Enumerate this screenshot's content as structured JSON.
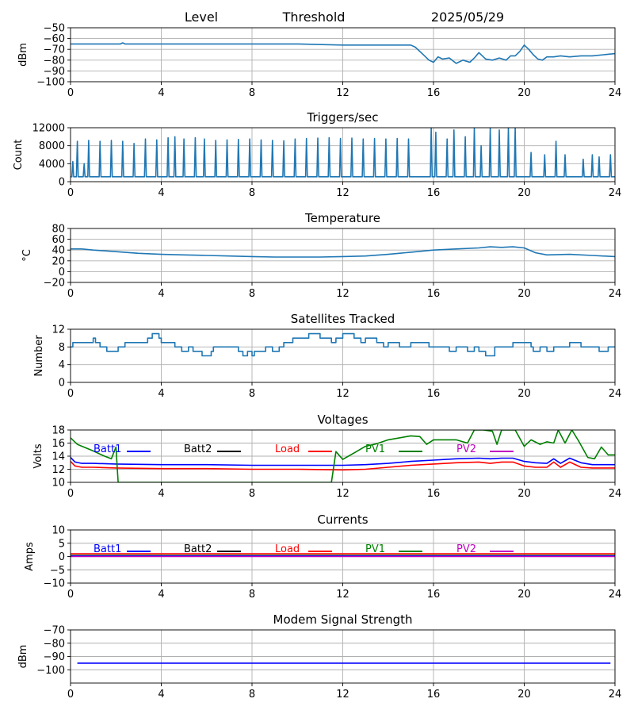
{
  "header": {
    "level_label": "Level",
    "threshold_label": "Threshold",
    "date": "2025/05/29"
  },
  "x_ticks": [
    "0",
    "4",
    "8",
    "12",
    "16",
    "20",
    "24"
  ],
  "chart_data": [
    {
      "type": "line",
      "title": "",
      "ylabel": "dBm",
      "xlim": [
        0,
        24
      ],
      "ylim": [
        -100,
        -50
      ],
      "yticks": [
        "-50",
        "-60",
        "-70",
        "-80",
        "-90",
        "-100"
      ],
      "grid": true,
      "series": [
        {
          "color": "#1f77b4",
          "x": [
            0,
            2.2,
            2.3,
            2.4,
            4,
            8,
            10,
            12,
            15,
            15.2,
            15.5,
            15.8,
            16,
            16.2,
            16.4,
            16.7,
            17,
            17.3,
            17.6,
            17.8,
            18,
            18.3,
            18.6,
            18.9,
            19.2,
            19.4,
            19.6,
            19.8,
            20,
            20.2,
            20.4,
            20.6,
            20.8,
            21,
            21.3,
            21.6,
            22,
            22.5,
            23,
            23.5,
            24
          ],
          "y": [
            -65,
            -65,
            -64,
            -65,
            -65,
            -65,
            -65,
            -66,
            -66,
            -68,
            -74,
            -80,
            -82,
            -77,
            -79,
            -78,
            -83,
            -80,
            -82,
            -78,
            -73,
            -79,
            -80,
            -78,
            -80,
            -76,
            -76,
            -72,
            -66,
            -70,
            -75,
            -79,
            -80,
            -77,
            -77,
            -76,
            -77,
            -76,
            -76,
            -75,
            -74
          ]
        }
      ]
    },
    {
      "type": "line",
      "title": "Triggers/sec",
      "ylabel": "Count",
      "xlim": [
        0,
        24
      ],
      "ylim": [
        0,
        12000
      ],
      "yticks": [
        "0",
        "4000",
        "8000",
        "12000"
      ],
      "grid": true,
      "series": [
        {
          "color": "#1f77b4",
          "baseline": 1100,
          "spikes": [
            {
              "x": 0.1,
              "y": 4500
            },
            {
              "x": 0.3,
              "y": 9000
            },
            {
              "x": 0.6,
              "y": 4000
            },
            {
              "x": 0.8,
              "y": 9200
            },
            {
              "x": 1.3,
              "y": 9000
            },
            {
              "x": 1.8,
              "y": 9200
            },
            {
              "x": 2.3,
              "y": 9000
            },
            {
              "x": 2.8,
              "y": 8500
            },
            {
              "x": 3.3,
              "y": 9500
            },
            {
              "x": 3.8,
              "y": 9300
            },
            {
              "x": 4.3,
              "y": 9800
            },
            {
              "x": 4.6,
              "y": 10000
            },
            {
              "x": 5.0,
              "y": 9500
            },
            {
              "x": 5.5,
              "y": 9800
            },
            {
              "x": 5.9,
              "y": 9500
            },
            {
              "x": 6.4,
              "y": 9200
            },
            {
              "x": 6.9,
              "y": 9300
            },
            {
              "x": 7.4,
              "y": 9400
            },
            {
              "x": 7.9,
              "y": 9500
            },
            {
              "x": 8.4,
              "y": 9300
            },
            {
              "x": 8.9,
              "y": 9200
            },
            {
              "x": 9.4,
              "y": 9100
            },
            {
              "x": 9.9,
              "y": 9500
            },
            {
              "x": 10.4,
              "y": 9600
            },
            {
              "x": 10.9,
              "y": 9700
            },
            {
              "x": 11.4,
              "y": 9800
            },
            {
              "x": 11.9,
              "y": 9600
            },
            {
              "x": 12.4,
              "y": 9700
            },
            {
              "x": 12.9,
              "y": 9500
            },
            {
              "x": 13.4,
              "y": 9600
            },
            {
              "x": 13.9,
              "y": 9500
            },
            {
              "x": 14.4,
              "y": 9600
            },
            {
              "x": 14.9,
              "y": 9500
            },
            {
              "x": 15.9,
              "y": 12000
            },
            {
              "x": 16.1,
              "y": 11000
            },
            {
              "x": 16.6,
              "y": 9500
            },
            {
              "x": 16.9,
              "y": 11500
            },
            {
              "x": 17.4,
              "y": 10000
            },
            {
              "x": 17.8,
              "y": 12000
            },
            {
              "x": 18.1,
              "y": 8000
            },
            {
              "x": 18.5,
              "y": 12000
            },
            {
              "x": 18.9,
              "y": 11500
            },
            {
              "x": 19.3,
              "y": 12000
            },
            {
              "x": 19.6,
              "y": 12000
            },
            {
              "x": 20.3,
              "y": 6500
            },
            {
              "x": 20.9,
              "y": 6000
            },
            {
              "x": 21.4,
              "y": 9000
            },
            {
              "x": 21.8,
              "y": 6000
            },
            {
              "x": 22.6,
              "y": 5000
            },
            {
              "x": 23.0,
              "y": 6000
            },
            {
              "x": 23.3,
              "y": 5500
            },
            {
              "x": 23.8,
              "y": 6000
            }
          ]
        }
      ]
    },
    {
      "type": "line",
      "title": "Temperature",
      "ylabel": "°C",
      "xlim": [
        0,
        24
      ],
      "ylim": [
        -20,
        80
      ],
      "yticks": [
        "80",
        "60",
        "40",
        "20",
        "0",
        "-20"
      ],
      "grid": true,
      "series": [
        {
          "color": "#1f77b4",
          "x": [
            0,
            0.5,
            1,
            2,
            3,
            4,
            5,
            6,
            7,
            8,
            9,
            10,
            11,
            12,
            13,
            14,
            15,
            16,
            17,
            18,
            18.5,
            19,
            19.5,
            20,
            20.5,
            21,
            22,
            23,
            24
          ],
          "y": [
            42,
            42,
            40,
            37,
            34,
            32,
            31,
            30,
            29,
            28,
            27,
            27,
            27,
            28,
            29,
            32,
            36,
            40,
            42,
            44,
            46,
            45,
            46,
            44,
            35,
            31,
            32,
            30,
            28
          ]
        }
      ]
    },
    {
      "type": "line",
      "title": "Satellites Tracked",
      "ylabel": "Number",
      "xlim": [
        0,
        24
      ],
      "ylim": [
        0,
        12
      ],
      "yticks": [
        "12",
        "8",
        "4",
        "0"
      ],
      "grid": true,
      "series": [
        {
          "color": "#1f77b4",
          "step": true,
          "x": [
            0,
            0.1,
            0.7,
            1.0,
            1.1,
            1.3,
            1.6,
            2.1,
            2.4,
            3.4,
            3.6,
            3.9,
            4.0,
            4.6,
            4.9,
            5.2,
            5.4,
            5.8,
            6.2,
            6.3,
            6.6,
            7.1,
            7.4,
            7.6,
            7.8,
            8.0,
            8.1,
            8.6,
            8.9,
            9.2,
            9.4,
            9.8,
            10.5,
            11.0,
            11.5,
            11.7,
            12.0,
            12.5,
            12.8,
            13.0,
            13.5,
            13.8,
            14.0,
            14.5,
            14.7,
            15.0,
            15.8,
            16.3,
            16.7,
            17.0,
            17.5,
            17.8,
            18.0,
            18.3,
            18.7,
            19.5,
            20.0,
            20.3,
            20.4,
            20.7,
            21.0,
            21.3,
            21.5,
            22.0,
            22.5,
            23.0,
            23.3,
            23.7,
            24
          ],
          "y": [
            8,
            9,
            9,
            10,
            9,
            8,
            7,
            8,
            9,
            10,
            11,
            10,
            9,
            8,
            7,
            8,
            7,
            6,
            7,
            8,
            8,
            8,
            7,
            6,
            7,
            6,
            7,
            8,
            7,
            8,
            9,
            10,
            11,
            10,
            9,
            10,
            11,
            10,
            9,
            10,
            9,
            8,
            9,
            8,
            8,
            9,
            8,
            8,
            7,
            8,
            7,
            8,
            7,
            6,
            8,
            9,
            9,
            8,
            7,
            8,
            7,
            8,
            8,
            9,
            8,
            8,
            7,
            8,
            8
          ]
        }
      ]
    },
    {
      "type": "line",
      "title": "Voltages",
      "ylabel": "Volts",
      "xlim": [
        0,
        24
      ],
      "ylim": [
        10,
        18
      ],
      "yticks": [
        "18",
        "16",
        "14",
        "12",
        "10"
      ],
      "grid": true,
      "legend": [
        {
          "label": "Batt1",
          "color": "#0000ff"
        },
        {
          "label": "Batt2",
          "color": "#000000"
        },
        {
          "label": "Load",
          "color": "#ff0000"
        },
        {
          "label": "PV1",
          "color": "#008000"
        },
        {
          "label": "PV2",
          "color": "#c000c0"
        }
      ],
      "series": [
        {
          "name": "Batt1",
          "color": "#0000ff",
          "x": [
            0,
            0.2,
            0.5,
            1,
            2,
            4,
            6,
            8,
            10,
            12,
            13,
            14,
            15,
            16,
            17,
            18,
            18.5,
            19,
            19.5,
            20,
            20.5,
            21,
            21.3,
            21.6,
            22,
            22.5,
            23,
            24
          ],
          "y": [
            13.8,
            13.1,
            12.9,
            12.9,
            12.8,
            12.7,
            12.7,
            12.6,
            12.6,
            12.6,
            12.7,
            12.9,
            13.2,
            13.4,
            13.6,
            13.7,
            13.6,
            13.7,
            13.7,
            13.2,
            13.0,
            12.9,
            13.6,
            12.9,
            13.7,
            13.0,
            12.7,
            12.7
          ]
        },
        {
          "name": "Load",
          "color": "#ff0000",
          "x": [
            0,
            0.2,
            0.5,
            1,
            2,
            4,
            6,
            8,
            10,
            12,
            13,
            14,
            15,
            16,
            17,
            18,
            18.5,
            19,
            19.5,
            20,
            20.5,
            21,
            21.3,
            21.6,
            22,
            22.5,
            23,
            24
          ],
          "y": [
            13.2,
            12.5,
            12.3,
            12.3,
            12.2,
            12.1,
            12.1,
            12.0,
            12.0,
            11.9,
            12.0,
            12.3,
            12.6,
            12.8,
            13.0,
            13.1,
            12.9,
            13.1,
            13.1,
            12.5,
            12.3,
            12.3,
            13.1,
            12.3,
            13.1,
            12.3,
            12.2,
            12.2
          ]
        },
        {
          "name": "PV1",
          "color": "#008000",
          "x": [
            0,
            0.3,
            1,
            1.5,
            1.8,
            2.0,
            2.1,
            11.5,
            11.7,
            12,
            12.5,
            13,
            13.5,
            14,
            15,
            15.4,
            15.7,
            16,
            17,
            17.5,
            17.8,
            18.2,
            18.6,
            18.8,
            19.0,
            19.6,
            20,
            20.3,
            20.7,
            21,
            21.3,
            21.5,
            21.8,
            22.1,
            22.4,
            22.8,
            23.1,
            23.4,
            23.7,
            24
          ],
          "y": [
            16.8,
            15.8,
            14.8,
            14.0,
            13.6,
            15.4,
            10.0,
            10.0,
            14.7,
            13.5,
            14.5,
            15.5,
            15.9,
            16.5,
            17.1,
            17.0,
            15.8,
            16.5,
            16.5,
            16.0,
            18.0,
            18.0,
            17.8,
            15.8,
            18.0,
            18.0,
            15.5,
            16.5,
            15.8,
            16.2,
            16.0,
            18.0,
            16.0,
            18.0,
            16.3,
            13.8,
            13.6,
            15.4,
            14.2,
            14.2
          ]
        }
      ]
    },
    {
      "type": "line",
      "title": "Currents",
      "ylabel": "Amps",
      "xlim": [
        0,
        24
      ],
      "ylim": [
        -10,
        10
      ],
      "yticks": [
        "10",
        "5",
        "0",
        "-5",
        "-10"
      ],
      "grid": true,
      "legend": [
        {
          "label": "Batt1",
          "color": "#0000ff"
        },
        {
          "label": "Batt2",
          "color": "#000000"
        },
        {
          "label": "Load",
          "color": "#ff0000"
        },
        {
          "label": "PV1",
          "color": "#008000"
        },
        {
          "label": "PV2",
          "color": "#c000c0"
        }
      ],
      "series": [
        {
          "name": "Load",
          "color": "#ff0000",
          "x": [
            0,
            24
          ],
          "y": [
            1.0,
            1.0
          ]
        },
        {
          "name": "PV1",
          "color": "#008000",
          "x": [
            0,
            24
          ],
          "y": [
            0.4,
            0.4
          ]
        },
        {
          "name": "Batt1",
          "color": "#0000ff",
          "x": [
            0,
            24
          ],
          "y": [
            0.2,
            0.2
          ]
        },
        {
          "name": "PV2",
          "color": "#c000c0",
          "x": [
            0,
            24
          ],
          "y": [
            0.0,
            0.0
          ]
        }
      ]
    },
    {
      "type": "line",
      "title": "Modem Signal Strength",
      "ylabel": "dBm",
      "xlim": [
        0,
        24
      ],
      "ylim": [
        -110,
        -70
      ],
      "yticks": [
        "-70",
        "-80",
        "-90",
        "-100"
      ],
      "grid": true,
      "series": [
        {
          "color": "#0000ff",
          "x": [
            0.3,
            23.8
          ],
          "y": [
            -95,
            -95
          ]
        }
      ]
    }
  ]
}
